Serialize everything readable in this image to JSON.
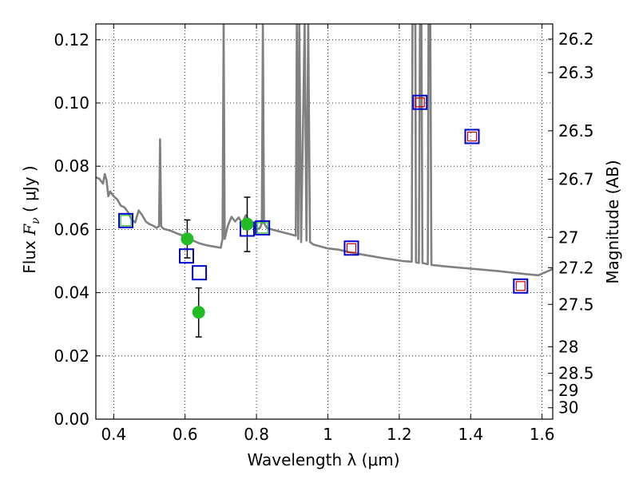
{
  "chart_data": {
    "type": "scatter",
    "title": "",
    "xlabel": "Wavelength  λ (μm)",
    "ylabel_left_prefix": "Flux  ",
    "ylabel_left_symbol": "F",
    "ylabel_left_sub": "ν",
    "ylabel_left_suffix": "  ( μJy )",
    "ylabel_right": "Magnitude (AB)",
    "xlim": [
      0.35,
      1.63
    ],
    "ylim": [
      0.0,
      0.125
    ],
    "grid": true,
    "x_ticks": [
      0.4,
      0.6,
      0.8,
      1.0,
      1.2,
      1.4,
      1.6
    ],
    "x_tick_labels": [
      "0.4",
      "0.6",
      "0.8",
      "1",
      "1.2",
      "1.4",
      "1.6"
    ],
    "y_ticks": [
      0.0,
      0.02,
      0.04,
      0.06,
      0.08,
      0.1,
      0.12
    ],
    "y_tick_labels": [
      "0.00",
      "0.02",
      "0.04",
      "0.06",
      "0.08",
      "0.10",
      "0.12"
    ],
    "right_axis_ticks": [
      {
        "label": "26.2",
        "flux": 0.1202
      },
      {
        "label": "26.3",
        "flux": 0.1096
      },
      {
        "label": "26.5",
        "flux": 0.0912
      },
      {
        "label": "26.7",
        "flux": 0.0759
      },
      {
        "label": "27",
        "flux": 0.0575
      },
      {
        "label": "27.2",
        "flux": 0.0479
      },
      {
        "label": "27.5",
        "flux": 0.0363
      },
      {
        "label": "28",
        "flux": 0.0229
      },
      {
        "label": "28.5",
        "flux": 0.0145
      },
      {
        "label": "29",
        "flux": 0.0091
      },
      {
        "label": "30",
        "flux": 0.0036
      }
    ],
    "series": [
      {
        "kind": "line",
        "color": "#808080",
        "points": [
          [
            0.35,
            0.0765
          ],
          [
            0.36,
            0.076
          ],
          [
            0.37,
            0.0745
          ],
          [
            0.375,
            0.0775
          ],
          [
            0.38,
            0.0755
          ],
          [
            0.385,
            0.0705
          ],
          [
            0.39,
            0.072
          ],
          [
            0.4,
            0.0705
          ],
          [
            0.41,
            0.0695
          ],
          [
            0.42,
            0.0675
          ],
          [
            0.43,
            0.067
          ],
          [
            0.44,
            0.0655
          ],
          [
            0.45,
            0.0632
          ],
          [
            0.46,
            0.0622
          ],
          [
            0.47,
            0.066
          ],
          [
            0.48,
            0.0645
          ],
          [
            0.49,
            0.0625
          ],
          [
            0.5,
            0.0617
          ],
          [
            0.51,
            0.0612
          ],
          [
            0.52,
            0.0605
          ],
          [
            0.527,
            0.061
          ],
          [
            0.53,
            0.0885
          ],
          [
            0.533,
            0.061
          ],
          [
            0.54,
            0.0602
          ],
          [
            0.56,
            0.0596
          ],
          [
            0.58,
            0.0586
          ],
          [
            0.6,
            0.0578
          ],
          [
            0.62,
            0.0566
          ],
          [
            0.64,
            0.0556
          ],
          [
            0.66,
            0.055
          ],
          [
            0.68,
            0.0546
          ],
          [
            0.7,
            0.0542
          ],
          [
            0.705,
            0.057
          ],
          [
            0.708,
            0.125
          ],
          [
            0.711,
            0.057
          ],
          [
            0.72,
            0.0612
          ],
          [
            0.73,
            0.064
          ],
          [
            0.74,
            0.0625
          ],
          [
            0.75,
            0.0638
          ],
          [
            0.76,
            0.062
          ],
          [
            0.77,
            0.0645
          ],
          [
            0.78,
            0.0628
          ],
          [
            0.79,
            0.0612
          ],
          [
            0.8,
            0.06
          ],
          [
            0.81,
            0.0605
          ],
          [
            0.815,
            0.062
          ],
          [
            0.818,
            0.125
          ],
          [
            0.821,
            0.062
          ],
          [
            0.83,
            0.0604
          ],
          [
            0.85,
            0.0598
          ],
          [
            0.87,
            0.0592
          ],
          [
            0.89,
            0.0586
          ],
          [
            0.91,
            0.058
          ],
          [
            0.913,
            0.125
          ],
          [
            0.917,
            0.057
          ],
          [
            0.92,
            0.125
          ],
          [
            0.925,
            0.056
          ],
          [
            0.935,
            0.125
          ],
          [
            0.94,
            0.0565
          ],
          [
            0.945,
            0.125
          ],
          [
            0.95,
            0.056
          ],
          [
            0.96,
            0.0552
          ],
          [
            0.98,
            0.0546
          ],
          [
            1.0,
            0.054
          ],
          [
            1.03,
            0.0536
          ],
          [
            1.06,
            0.0528
          ],
          [
            1.09,
            0.0522
          ],
          [
            1.12,
            0.0516
          ],
          [
            1.15,
            0.051
          ],
          [
            1.18,
            0.0505
          ],
          [
            1.21,
            0.05
          ],
          [
            1.235,
            0.0498
          ],
          [
            1.237,
            0.125
          ],
          [
            1.245,
            0.125
          ],
          [
            1.247,
            0.0496
          ],
          [
            1.255,
            0.0494
          ],
          [
            1.258,
            0.125
          ],
          [
            1.262,
            0.125
          ],
          [
            1.265,
            0.0494
          ],
          [
            1.28,
            0.049
          ],
          [
            1.282,
            0.125
          ],
          [
            1.287,
            0.125
          ],
          [
            1.29,
            0.0488
          ],
          [
            1.32,
            0.0484
          ],
          [
            1.36,
            0.048
          ],
          [
            1.4,
            0.0476
          ],
          [
            1.44,
            0.0472
          ],
          [
            1.48,
            0.0468
          ],
          [
            1.52,
            0.0463
          ],
          [
            1.56,
            0.0458
          ],
          [
            1.59,
            0.0455
          ],
          [
            1.6,
            0.046
          ],
          [
            1.63,
            0.0475
          ]
        ]
      },
      {
        "kind": "open-square",
        "color": "#0000cc",
        "points": [
          [
            0.434,
            0.0628
          ],
          [
            0.604,
            0.0516
          ],
          [
            0.64,
            0.0463
          ],
          [
            0.774,
            0.0601
          ],
          [
            0.817,
            0.0605
          ],
          [
            1.066,
            0.0541
          ],
          [
            1.258,
            0.1002
          ],
          [
            1.404,
            0.0894
          ],
          [
            1.54,
            0.0421
          ]
        ]
      },
      {
        "kind": "open-square",
        "color": "#cc0000",
        "points": [
          [
            1.066,
            0.0541
          ],
          [
            1.258,
            0.1002
          ],
          [
            1.404,
            0.0894
          ],
          [
            1.54,
            0.0421
          ]
        ]
      },
      {
        "kind": "open-square",
        "color": "#22bb22",
        "points": [
          [
            0.434,
            0.0628
          ],
          [
            0.817,
            0.0605
          ]
        ]
      },
      {
        "kind": "filled-circle",
        "color": "#22bb22",
        "points": [
          [
            0.606,
            0.057
          ],
          [
            0.638,
            0.0338
          ],
          [
            0.774,
            0.0617
          ]
        ]
      },
      {
        "kind": "error-bar",
        "color": "#000000",
        "points": [
          {
            "x": 0.606,
            "y": 0.057,
            "lo": 0.051,
            "hi": 0.063
          },
          {
            "x": 0.638,
            "y": 0.0338,
            "lo": 0.026,
            "hi": 0.0415
          },
          {
            "x": 0.774,
            "y": 0.0617,
            "lo": 0.053,
            "hi": 0.0702
          }
        ]
      }
    ]
  }
}
